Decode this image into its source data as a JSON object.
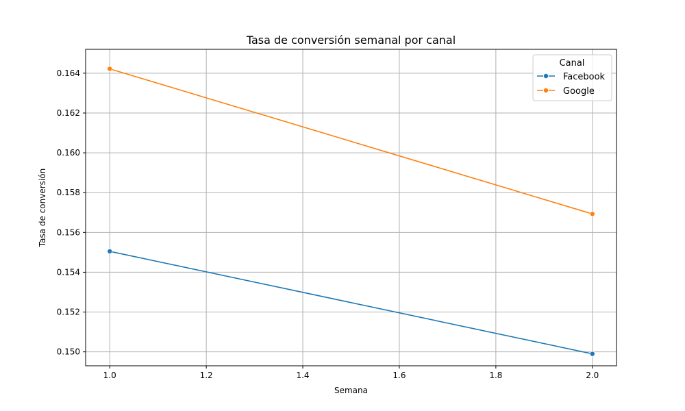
{
  "chart_data": {
    "type": "line",
    "title": "Tasa de conversión semanal por canal",
    "xlabel": "Semana",
    "ylabel": "Tasa de conversión",
    "xlim": [
      0.95,
      2.05
    ],
    "ylim": [
      0.1493,
      0.1652
    ],
    "xticks": [
      1.0,
      1.2,
      1.4,
      1.6,
      1.8,
      2.0
    ],
    "xtick_labels": [
      "1.0",
      "1.2",
      "1.4",
      "1.6",
      "1.8",
      "2.0"
    ],
    "yticks": [
      0.15,
      0.152,
      0.154,
      0.156,
      0.158,
      0.16,
      0.162,
      0.164
    ],
    "ytick_labels": [
      "0.150",
      "0.152",
      "0.154",
      "0.156",
      "0.158",
      "0.160",
      "0.162",
      "0.164"
    ],
    "grid": true,
    "legend": {
      "title": "Canal",
      "placement": "top-right"
    },
    "series": [
      {
        "name": "Facebook",
        "color": "#1f77b4",
        "marker": "circle",
        "x": [
          1.0,
          2.0
        ],
        "y": [
          0.15505,
          0.1499
        ]
      },
      {
        "name": "Google",
        "color": "#ff7f0e",
        "marker": "circle",
        "x": [
          1.0,
          2.0
        ],
        "y": [
          0.16422,
          0.15693
        ]
      }
    ]
  }
}
